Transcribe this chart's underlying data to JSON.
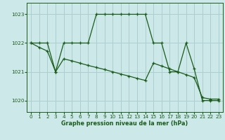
{
  "title": "Graphe pression niveau de la mer (hPa)",
  "background_color": "#cce8e8",
  "grid_color": "#aacece",
  "line_color": "#1a5c1a",
  "xlim": [
    -0.5,
    23.5
  ],
  "ylim": [
    1019.6,
    1023.4
  ],
  "yticks": [
    1020,
    1021,
    1022,
    1023
  ],
  "xticks": [
    0,
    1,
    2,
    3,
    4,
    5,
    6,
    7,
    8,
    9,
    10,
    11,
    12,
    13,
    14,
    15,
    16,
    17,
    18,
    19,
    20,
    21,
    22,
    23
  ],
  "upper_x": [
    0,
    1,
    2,
    3,
    4,
    5,
    6,
    7,
    8,
    9,
    10,
    11,
    12,
    13,
    14,
    15,
    16,
    17,
    18,
    19,
    20,
    21,
    22,
    23
  ],
  "upper_y": [
    1022.0,
    1022.0,
    1022.0,
    1021.0,
    1022.0,
    1022.0,
    1022.0,
    1022.0,
    1023.0,
    1023.0,
    1023.0,
    1023.0,
    1023.0,
    1023.0,
    1023.0,
    1022.0,
    1022.0,
    1021.0,
    1021.0,
    1022.0,
    1021.1,
    1020.0,
    1020.0,
    1020.0
  ],
  "lower_x": [
    0,
    1,
    2,
    3,
    4,
    5,
    6,
    7,
    8,
    9,
    10,
    11,
    12,
    13,
    14,
    15,
    16,
    17,
    18,
    19,
    20,
    21,
    22,
    23
  ],
  "lower_y": [
    1022.0,
    1021.85,
    1021.72,
    1021.0,
    1021.45,
    1021.38,
    1021.3,
    1021.22,
    1021.15,
    1021.08,
    1021.0,
    1020.92,
    1020.85,
    1020.77,
    1020.7,
    1021.3,
    1021.2,
    1021.1,
    1021.0,
    1020.9,
    1020.8,
    1020.1,
    1020.05,
    1020.05
  ]
}
